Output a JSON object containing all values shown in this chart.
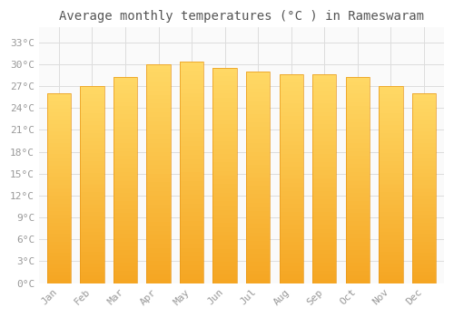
{
  "title": "Average monthly temperatures (°C ) in Rameswaram",
  "months": [
    "Jan",
    "Feb",
    "Mar",
    "Apr",
    "May",
    "Jun",
    "Jul",
    "Aug",
    "Sep",
    "Oct",
    "Nov",
    "Dec"
  ],
  "temperatures": [
    26.0,
    27.0,
    28.2,
    30.0,
    30.3,
    29.5,
    29.0,
    28.6,
    28.6,
    28.2,
    27.0,
    26.0
  ],
  "bar_color_bottom": "#F5A623",
  "bar_color_top": "#FFD966",
  "background_color": "#FFFFFF",
  "plot_bg_color": "#FAFAFA",
  "grid_color": "#DDDDDD",
  "yticks": [
    0,
    3,
    6,
    9,
    12,
    15,
    18,
    21,
    24,
    27,
    30,
    33
  ],
  "ylim": [
    0,
    35
  ],
  "title_fontsize": 10,
  "tick_fontsize": 8,
  "font_family": "monospace",
  "tick_color": "#999999"
}
